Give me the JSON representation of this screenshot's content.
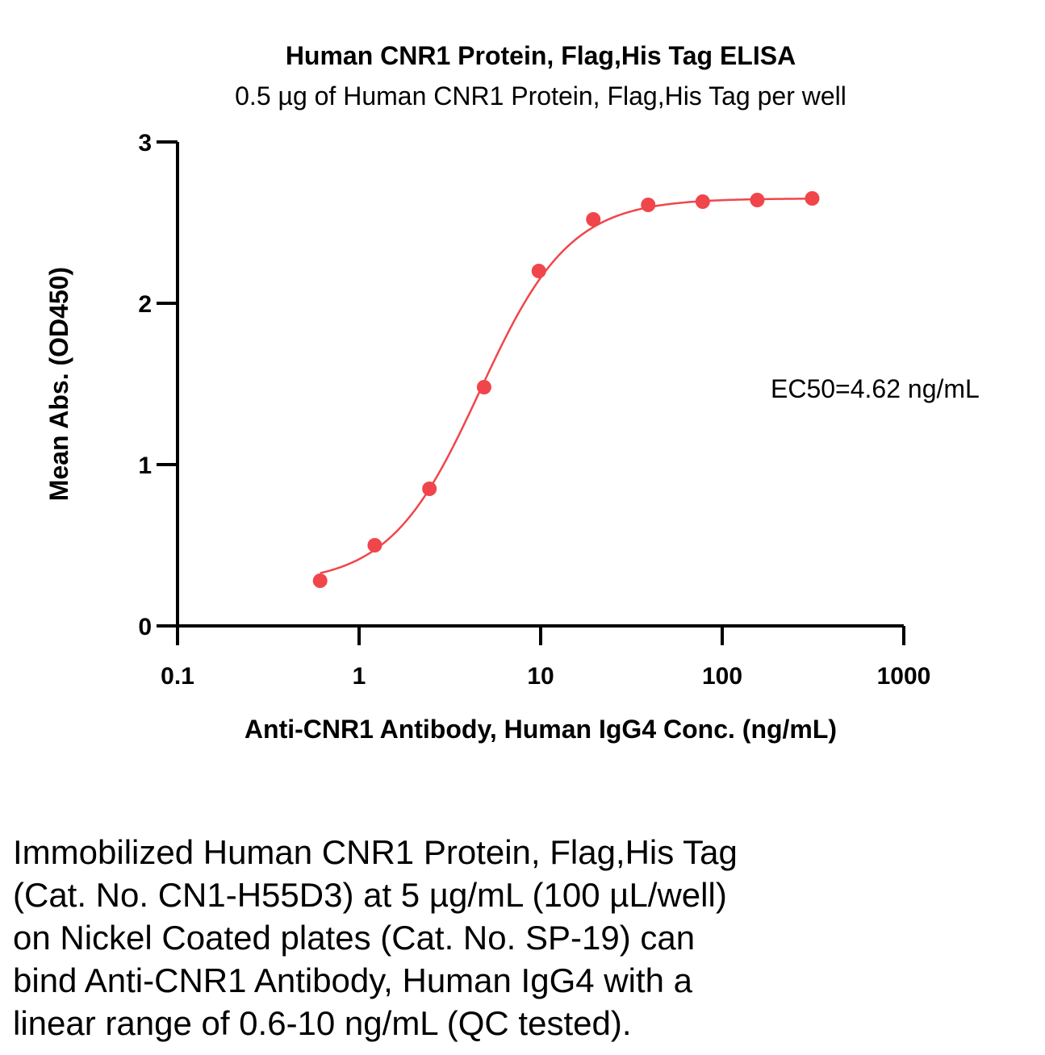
{
  "chart_data": {
    "type": "scatter",
    "title": "Human CNR1 Protein, Flag,His Tag ELISA",
    "subtitle": "0.5 µg of Human CNR1 Protein, Flag,His Tag per well",
    "xlabel": "Anti-CNR1 Antibody, Human IgG4 Conc. (ng/mL)",
    "ylabel": "Mean Abs. (OD450)",
    "x_scale": "log",
    "xlim": [
      0.1,
      1000
    ],
    "ylim": [
      0,
      3
    ],
    "x_ticks": [
      "0.1",
      "1",
      "10",
      "100",
      "1000"
    ],
    "y_ticks": [
      "0",
      "1",
      "2",
      "3"
    ],
    "grid": false,
    "annotation": "EC50=4.62 ng/mL",
    "series": [
      {
        "color": "#f0464b",
        "x": [
          0.61,
          1.22,
          2.44,
          4.88,
          9.77,
          19.5,
          39.1,
          78.1,
          156,
          313
        ],
        "y": [
          0.28,
          0.5,
          0.85,
          1.48,
          2.2,
          2.52,
          2.61,
          2.63,
          2.64,
          2.65
        ],
        "fit": {
          "model": "4PL",
          "bottom": 0.26,
          "top": 2.65,
          "ec50": 4.62,
          "hill": 1.75
        }
      }
    ]
  },
  "caption": {
    "lines": [
      "Immobilized Human CNR1 Protein, Flag,His Tag",
      "(Cat. No. CN1-H55D3) at 5 µg/mL (100 µL/well)",
      "on Nickel Coated plates (Cat. No. SP-19) can",
      "bind Anti-CNR1 Antibody, Human IgG4 with a",
      "linear range of 0.6-10 ng/mL (QC tested)."
    ]
  }
}
